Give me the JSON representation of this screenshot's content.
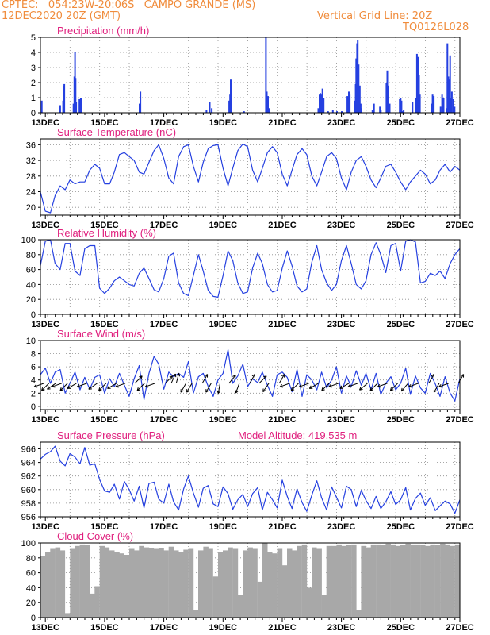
{
  "header": {
    "line1": "CPTEC:   054:23W-20:06S   CAMPO GRANDE (MS)",
    "line2": "12DEC2020 20Z (GMT)",
    "grid_note": "Vertical Grid Line: 20Z",
    "model_id": "TQ0126L028",
    "model_altitude": "Model Altitude: 419.535 m"
  },
  "colors": {
    "header": "#f08c3c",
    "panel_title": "#e0207e",
    "series": "#2540e0",
    "cloud": "#a8a8a8",
    "grid": "#8c8c8c"
  },
  "chart_data": [
    {
      "type": "bar",
      "title": "Precipitation (mm/h)",
      "x_tick_labels": [
        "13DEC",
        "15DEC",
        "17DEC",
        "19DEC",
        "21DEC",
        "23DEC",
        "25DEC",
        "27DEC"
      ],
      "xlim_days": [
        12.8333,
        27.0
      ],
      "ylim": [
        0,
        5
      ],
      "y_ticks": [
        0,
        1,
        2,
        3,
        4,
        5
      ],
      "x": [
        12.88,
        13.5,
        13.6,
        13.62,
        13.64,
        13.95,
        13.98,
        14.0,
        14.02,
        14.04,
        14.15,
        14.2,
        16.18,
        16.21,
        18.44,
        18.55,
        18.62,
        19.21,
        19.24,
        19.26,
        19.71,
        20.45,
        20.48,
        20.5,
        20.52,
        20.55,
        22.22,
        22.26,
        22.29,
        22.32,
        22.36,
        22.4,
        22.55,
        22.71,
        22.85,
        23.01,
        23.2,
        23.22,
        23.25,
        23.28,
        23.45,
        23.48,
        23.5,
        23.53,
        23.55,
        23.58,
        23.62,
        23.65,
        23.68,
        24.05,
        24.08,
        24.1,
        24.3,
        24.33,
        24.52,
        24.55,
        24.58,
        24.63,
        24.97,
        25.0,
        25.03,
        25.07,
        25.1,
        25.4,
        25.52,
        25.55,
        25.58,
        25.62,
        25.65,
        26.05,
        26.08,
        26.12,
        26.35,
        26.4,
        26.45,
        26.55,
        26.58,
        26.61,
        26.64,
        26.67,
        26.7,
        26.73,
        26.78,
        26.82
      ],
      "values": [
        0.8,
        0.5,
        0.8,
        1.8,
        1.9,
        0.6,
        2.4,
        4.0,
        2.3,
        0.7,
        0.9,
        1.0,
        0.6,
        1.4,
        0.2,
        0.7,
        0.3,
        0.8,
        1.2,
        2.2,
        0.1,
        5.0,
        1.4,
        0.9,
        1.1,
        0.3,
        0.3,
        1.2,
        1.3,
        1.2,
        1.6,
        1.0,
        0.1,
        0.2,
        0.1,
        0.1,
        1.1,
        0.9,
        1.4,
        1.2,
        0.8,
        1.9,
        3.6,
        4.6,
        4.8,
        3.2,
        1.8,
        0.6,
        0.3,
        0.2,
        0.5,
        0.6,
        0.4,
        0.2,
        2.0,
        2.8,
        1.8,
        0.6,
        0.9,
        1.0,
        0.8,
        0.1,
        0.2,
        0.7,
        1.0,
        3.9,
        3.7,
        2.5,
        1.2,
        0.6,
        1.2,
        1.1,
        0.4,
        1.2,
        1.0,
        0.3,
        4.6,
        2.4,
        2.2,
        3.8,
        1.0,
        1.4,
        0.9,
        0.4
      ]
    },
    {
      "type": "line",
      "title": "Surface Temperature (nC)",
      "x_tick_labels": [
        "13DEC",
        "15DEC",
        "17DEC",
        "19DEC",
        "21DEC",
        "23DEC",
        "25DEC",
        "27DEC"
      ],
      "xlim_days": [
        12.8333,
        27.0
      ],
      "ylim": [
        18,
        37.5
      ],
      "y_ticks": [
        20,
        24,
        28,
        32,
        36
      ],
      "x": [
        12.83,
        13.0,
        13.17,
        13.33,
        13.5,
        13.67,
        13.83,
        14.0,
        14.17,
        14.33,
        14.5,
        14.67,
        14.83,
        15.0,
        15.17,
        15.33,
        15.5,
        15.67,
        15.83,
        16.0,
        16.17,
        16.33,
        16.5,
        16.67,
        16.83,
        17.0,
        17.17,
        17.33,
        17.5,
        17.67,
        17.83,
        18.0,
        18.17,
        18.33,
        18.5,
        18.67,
        18.83,
        19.0,
        19.17,
        19.33,
        19.5,
        19.67,
        19.83,
        20.0,
        20.17,
        20.33,
        20.5,
        20.67,
        20.83,
        21.0,
        21.17,
        21.33,
        21.5,
        21.67,
        21.83,
        22.0,
        22.17,
        22.33,
        22.5,
        22.67,
        22.83,
        23.0,
        23.17,
        23.33,
        23.5,
        23.67,
        23.83,
        24.0,
        24.17,
        24.33,
        24.5,
        24.67,
        24.83,
        25.0,
        25.17,
        25.33,
        25.5,
        25.67,
        25.83,
        26.0,
        26.17,
        26.33,
        26.5,
        26.67,
        26.83,
        27.0
      ],
      "values": [
        24,
        19,
        18.6,
        23,
        25.5,
        24.5,
        27,
        26,
        26.5,
        26.5,
        29.5,
        31,
        30,
        26,
        26,
        29,
        33.5,
        34,
        33,
        32,
        29,
        28.5,
        31.5,
        34.5,
        36,
        32.5,
        27.5,
        26,
        33,
        35.5,
        36,
        30.5,
        26.5,
        31.5,
        35,
        35.8,
        36,
        30,
        25.5,
        30,
        34.5,
        36.2,
        35.5,
        29.5,
        26.5,
        30,
        34,
        35.5,
        34,
        28.5,
        25.5,
        29.5,
        33.5,
        35,
        33.5,
        28,
        25.5,
        29,
        33,
        34,
        32.5,
        27.5,
        24.5,
        29,
        32,
        33,
        30.5,
        27,
        25,
        27.5,
        30.5,
        31,
        29,
        26.5,
        24.5,
        26.5,
        28,
        29.5,
        28.5,
        26,
        27,
        29.5,
        31,
        29,
        30.5,
        29.5
      ]
    },
    {
      "type": "line",
      "title": "Relative Humidity (%)",
      "x_tick_labels": [
        "13DEC",
        "15DEC",
        "17DEC",
        "19DEC",
        "21DEC",
        "23DEC",
        "25DEC",
        "27DEC"
      ],
      "xlim_days": [
        12.8333,
        27.0
      ],
      "ylim": [
        0,
        100
      ],
      "y_ticks": [
        0,
        20,
        40,
        60,
        80,
        100
      ],
      "x": [
        12.83,
        13.0,
        13.17,
        13.33,
        13.5,
        13.67,
        13.83,
        14.0,
        14.17,
        14.33,
        14.5,
        14.67,
        14.83,
        15.0,
        15.17,
        15.33,
        15.5,
        15.67,
        15.83,
        16.0,
        16.17,
        16.33,
        16.5,
        16.67,
        16.83,
        17.0,
        17.17,
        17.33,
        17.5,
        17.67,
        17.83,
        18.0,
        18.17,
        18.33,
        18.5,
        18.67,
        18.83,
        19.0,
        19.17,
        19.33,
        19.5,
        19.67,
        19.83,
        20.0,
        20.17,
        20.33,
        20.5,
        20.67,
        20.83,
        21.0,
        21.17,
        21.33,
        21.5,
        21.67,
        21.83,
        22.0,
        22.17,
        22.33,
        22.5,
        22.67,
        22.83,
        23.0,
        23.17,
        23.33,
        23.5,
        23.67,
        23.83,
        24.0,
        24.17,
        24.33,
        24.5,
        24.67,
        24.83,
        25.0,
        25.17,
        25.33,
        25.5,
        25.67,
        25.83,
        26.0,
        26.17,
        26.33,
        26.5,
        26.67,
        26.83,
        27.0
      ],
      "values": [
        65,
        98,
        100,
        68,
        60,
        95,
        95,
        58,
        52,
        88,
        92,
        92,
        35,
        28,
        35,
        45,
        50,
        45,
        40,
        38,
        55,
        62,
        48,
        33,
        30,
        48,
        78,
        82,
        42,
        28,
        25,
        52,
        80,
        58,
        32,
        24,
        23,
        52,
        85,
        72,
        42,
        28,
        30,
        62,
        82,
        68,
        40,
        30,
        32,
        62,
        85,
        65,
        38,
        30,
        34,
        70,
        92,
        60,
        42,
        32,
        40,
        72,
        92,
        68,
        40,
        34,
        45,
        80,
        96,
        80,
        56,
        92,
        95,
        58,
        98,
        100,
        97,
        42,
        44,
        55,
        52,
        58,
        48,
        68,
        80,
        88
      ]
    },
    {
      "type": "line",
      "title": "Surface Wind (m/s)",
      "x_tick_labels": [
        "13DEC",
        "15DEC",
        "17DEC",
        "19DEC",
        "21DEC",
        "23DEC",
        "25DEC",
        "27DEC"
      ],
      "xlim_days": [
        12.8333,
        27.0
      ],
      "ylim": [
        -0.5,
        10
      ],
      "y_ticks": [
        0,
        2,
        4,
        6,
        8,
        10
      ],
      "x": [
        12.83,
        13.0,
        13.17,
        13.33,
        13.5,
        13.67,
        13.83,
        14.0,
        14.17,
        14.33,
        14.5,
        14.67,
        14.83,
        15.0,
        15.17,
        15.33,
        15.5,
        15.67,
        15.83,
        16.0,
        16.17,
        16.33,
        16.5,
        16.67,
        16.83,
        17.0,
        17.17,
        17.33,
        17.5,
        17.67,
        17.83,
        18.0,
        18.17,
        18.33,
        18.5,
        18.67,
        18.83,
        19.0,
        19.17,
        19.33,
        19.5,
        19.67,
        19.83,
        20.0,
        20.17,
        20.33,
        20.5,
        20.67,
        20.83,
        21.0,
        21.17,
        21.33,
        21.5,
        21.67,
        21.83,
        22.0,
        22.17,
        22.33,
        22.5,
        22.67,
        22.83,
        23.0,
        23.17,
        23.33,
        23.5,
        23.67,
        23.83,
        24.0,
        24.17,
        24.33,
        24.5,
        24.67,
        24.83,
        25.0,
        25.17,
        25.33,
        25.5,
        25.67,
        25.83,
        26.0,
        26.17,
        26.33,
        26.5,
        26.67,
        26.83,
        27.0
      ],
      "values": [
        4.8,
        5.8,
        3.5,
        5.2,
        5.6,
        2.0,
        3.5,
        5.2,
        2.5,
        4.4,
        2.6,
        4.4,
        4.8,
        2.0,
        4.2,
        3.0,
        5.0,
        3.2,
        1.5,
        4.2,
        6.2,
        1.0,
        5.0,
        7.6,
        6.4,
        2.6,
        5.2,
        4.5,
        5.0,
        4.4,
        6.8,
        2.0,
        4.5,
        5.0,
        3.0,
        1.5,
        4.0,
        5.0,
        8.6,
        3.5,
        4.6,
        6.4,
        3.0,
        4.2,
        3.6,
        5.2,
        3.2,
        1.5,
        4.8,
        5.2,
        4.4,
        2.2,
        5.6,
        1.5,
        4.8,
        4.0,
        2.5,
        5.2,
        2.8,
        4.0,
        6.0,
        2.0,
        4.6,
        3.0,
        5.4,
        3.2,
        5.0,
        2.5,
        5.0,
        1.8,
        3.5,
        4.5,
        2.5,
        3.5,
        5.8,
        1.8,
        4.6,
        2.8,
        2.0,
        5.0,
        3.4,
        1.5,
        4.5,
        2.0,
        0.8,
        4.2
      ]
    },
    {
      "type": "line",
      "title": "Surface Pressure (hPa)",
      "x_tick_labels": [
        "13DEC",
        "15DEC",
        "17DEC",
        "19DEC",
        "21DEC",
        "23DEC",
        "25DEC",
        "27DEC"
      ],
      "xlim_days": [
        12.8333,
        27.0
      ],
      "ylim": [
        956,
        967
      ],
      "y_ticks": [
        956,
        958,
        960,
        962,
        964,
        966
      ],
      "x": [
        12.83,
        13.0,
        13.17,
        13.33,
        13.5,
        13.67,
        13.83,
        14.0,
        14.17,
        14.33,
        14.5,
        14.67,
        14.83,
        15.0,
        15.17,
        15.33,
        15.5,
        15.67,
        15.83,
        16.0,
        16.17,
        16.33,
        16.5,
        16.67,
        16.83,
        17.0,
        17.17,
        17.33,
        17.5,
        17.67,
        17.83,
        18.0,
        18.17,
        18.33,
        18.5,
        18.67,
        18.83,
        19.0,
        19.17,
        19.33,
        19.5,
        19.67,
        19.83,
        20.0,
        20.17,
        20.33,
        20.5,
        20.67,
        20.83,
        21.0,
        21.17,
        21.33,
        21.5,
        21.67,
        21.83,
        22.0,
        22.17,
        22.33,
        22.5,
        22.67,
        22.83,
        23.0,
        23.17,
        23.33,
        23.5,
        23.67,
        23.83,
        24.0,
        24.17,
        24.33,
        24.5,
        24.67,
        24.83,
        25.0,
        25.17,
        25.33,
        25.5,
        25.67,
        25.83,
        26.0,
        26.17,
        26.33,
        26.5,
        26.67,
        26.83,
        27.0
      ],
      "values": [
        964.5,
        965.2,
        965.6,
        966.4,
        964.2,
        963.5,
        965.3,
        964.8,
        963.8,
        966.2,
        963.6,
        963.8,
        961.5,
        959.8,
        959.6,
        960.8,
        958.6,
        961.2,
        960.0,
        958.3,
        960.5,
        957.3,
        960.9,
        961.1,
        958.6,
        958.0,
        960.8,
        958.2,
        957.0,
        960.1,
        962.0,
        959.5,
        957.4,
        960.2,
        960.6,
        957.9,
        957.5,
        960.4,
        959.4,
        957.1,
        958.5,
        959.3,
        957.5,
        959.4,
        960.3,
        957.0,
        959.6,
        958.5,
        957.3,
        961.4,
        959.0,
        957.2,
        960.1,
        958.1,
        956.8,
        959.2,
        961.3,
        958.8,
        957.0,
        960.4,
        958.9,
        957.3,
        960.5,
        960.0,
        957.5,
        959.9,
        958.4,
        957.2,
        959.0,
        957.2,
        958.2,
        959.7,
        957.8,
        958.5,
        960.3,
        957.0,
        958.7,
        959.5,
        957.7,
        958.8,
        956.9,
        957.6,
        958.3,
        957.9,
        956.5,
        958.5
      ]
    },
    {
      "type": "bar",
      "title": "Cloud Cover (%)",
      "x_tick_labels": [
        "13DEC",
        "15DEC",
        "17DEC",
        "19DEC",
        "21DEC",
        "23DEC",
        "25DEC",
        "27DEC"
      ],
      "xlim_days": [
        12.8333,
        27.0
      ],
      "ylim": [
        0,
        100
      ],
      "y_ticks": [
        0,
        20,
        40,
        60,
        80,
        100
      ],
      "x": [
        12.92,
        13.08,
        13.25,
        13.42,
        13.58,
        13.75,
        13.92,
        14.08,
        14.25,
        14.42,
        14.58,
        14.75,
        14.92,
        15.08,
        15.25,
        15.42,
        15.58,
        15.75,
        15.92,
        16.08,
        16.25,
        16.42,
        16.58,
        16.75,
        16.92,
        17.08,
        17.25,
        17.42,
        17.58,
        17.75,
        17.92,
        18.08,
        18.25,
        18.42,
        18.58,
        18.75,
        18.92,
        19.08,
        19.25,
        19.42,
        19.58,
        19.75,
        19.92,
        20.08,
        20.25,
        20.42,
        20.58,
        20.75,
        20.92,
        21.08,
        21.25,
        21.42,
        21.58,
        21.75,
        21.92,
        22.08,
        22.25,
        22.42,
        22.58,
        22.75,
        22.92,
        23.08,
        23.25,
        23.42,
        23.58,
        23.75,
        23.92,
        24.08,
        24.25,
        24.42,
        24.58,
        24.75,
        24.92,
        25.08,
        25.25,
        25.42,
        25.58,
        25.75,
        25.92,
        26.08,
        26.25,
        26.42,
        26.58,
        26.75,
        26.92
      ],
      "values": [
        82,
        88,
        92,
        94,
        90,
        6,
        92,
        96,
        98,
        97,
        32,
        42,
        96,
        94,
        90,
        88,
        86,
        84,
        92,
        90,
        96,
        94,
        93,
        92,
        93,
        90,
        95,
        90,
        88,
        91,
        92,
        10,
        90,
        95,
        92,
        55,
        88,
        90,
        94,
        92,
        30,
        90,
        94,
        92,
        48,
        100,
        88,
        86,
        92,
        70,
        92,
        90,
        96,
        98,
        40,
        94,
        92,
        30,
        96,
        96,
        98,
        96,
        97,
        98,
        10,
        96,
        94,
        98,
        98,
        97,
        99,
        98,
        96,
        97,
        99,
        98,
        98,
        97,
        96,
        98,
        97,
        99,
        98,
        96,
        98
      ]
    }
  ]
}
